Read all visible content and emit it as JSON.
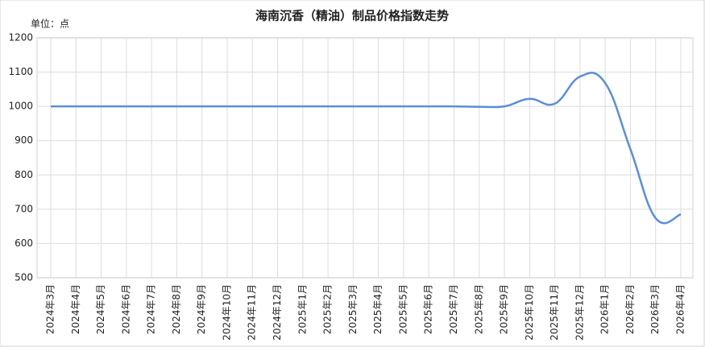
{
  "chart_data": {
    "type": "line",
    "title": "海南沉香（精油）制品价格指数走势",
    "unit_label": "单位：点",
    "categories": [
      "2024年3月",
      "2024年4月",
      "2024年5月",
      "2024年6月",
      "2024年7月",
      "2024年8月",
      "2024年9月",
      "2024年10月",
      "2024年11月",
      "2024年12月",
      "2025年1月",
      "2025年2月",
      "2025年3月",
      "2025年4月",
      "2025年5月",
      "2025年6月",
      "2025年7月",
      "2025年8月",
      "2025年9月",
      "2025年10月",
      "2025年11月",
      "2025年12月",
      "2026年1月",
      "2026年2月",
      "2026年3月",
      "2026年4月"
    ],
    "values": [
      1000,
      1000,
      1000,
      1000,
      1000,
      1000,
      1000,
      1000,
      1000,
      1000,
      1000,
      1000,
      1000,
      1000,
      1000,
      1000,
      1000,
      999,
      1000,
      1022,
      1008,
      1087,
      1068,
      875,
      674,
      685
    ],
    "color": "#5b8fd6",
    "ylim": [
      500,
      1200
    ],
    "yticks": [
      500,
      600,
      700,
      800,
      900,
      1000,
      1100,
      1200
    ],
    "grid": true
  }
}
